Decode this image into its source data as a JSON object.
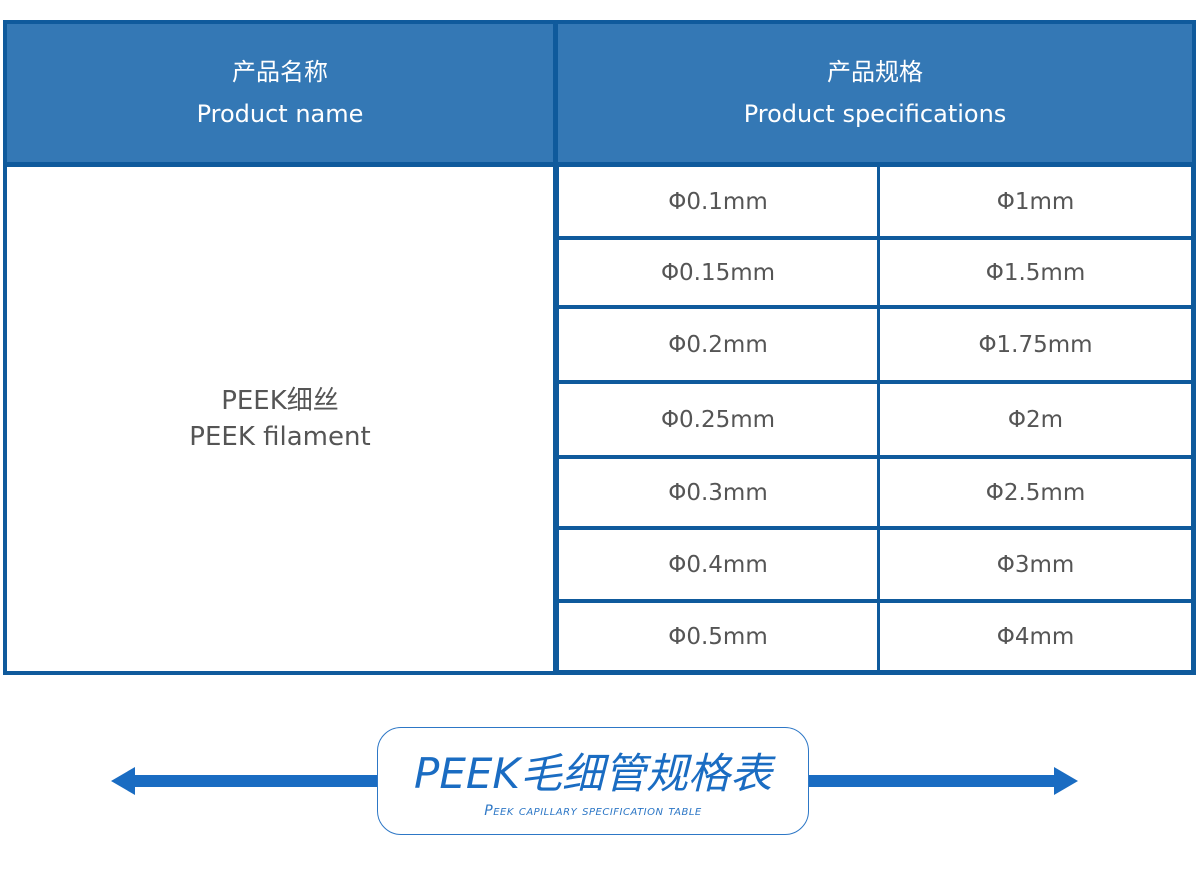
{
  "header": {
    "name_zh": "产品名称",
    "name_en": "Product name",
    "spec_zh": "产品规格",
    "spec_en": "Product specifications"
  },
  "product": {
    "name_zh": "PEEK细丝",
    "name_en": "PEEK filament"
  },
  "specs": [
    [
      "Φ0.1mm",
      "Φ1mm"
    ],
    [
      "Φ0.15mm",
      "Φ1.5mm"
    ],
    [
      "Φ0.2mm",
      "Φ1.75mm"
    ],
    [
      "Φ0.25mm",
      "Φ2m"
    ],
    [
      "Φ0.3mm",
      "Φ2.5mm"
    ],
    [
      "Φ0.4mm",
      "Φ3mm"
    ],
    [
      "Φ0.5mm",
      "Φ4mm"
    ]
  ],
  "banner": {
    "title": "PEEK毛细管规格表",
    "subtitle": "Peek capillary specification table"
  },
  "colors": {
    "border": "#0f5a9c",
    "header_bg": "#3478b5",
    "accent": "#1a6cc2"
  }
}
